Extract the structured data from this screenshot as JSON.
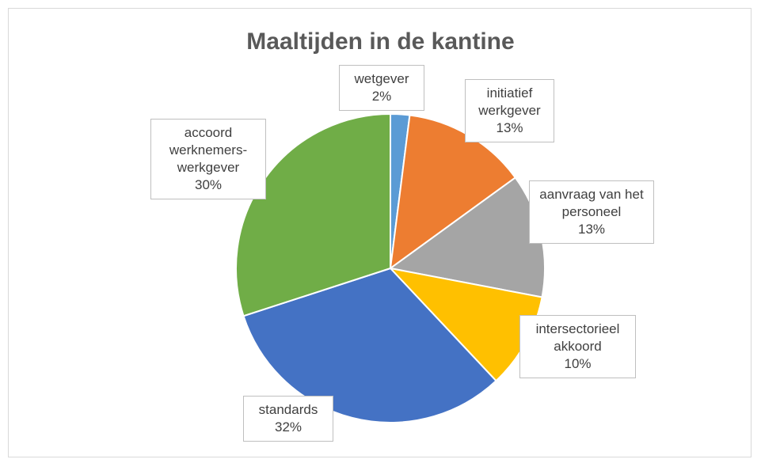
{
  "chart_data": {
    "type": "pie",
    "title": "Maaltijden in de kantine",
    "categories": [
      "wetgever",
      "initiatief werkgever",
      "aanvraag van het personeel",
      "intersectorieel akkoord",
      "standards",
      "accoord werknemers-werkgever"
    ],
    "values": [
      2,
      13,
      13,
      10,
      32,
      30
    ],
    "value_labels": [
      "2%",
      "13%",
      "13%",
      "10%",
      "32%",
      "30%"
    ],
    "colors": [
      "#5b9bd5",
      "#ed7d31",
      "#a5a5a5",
      "#ffc000",
      "#4472c4",
      "#70ad47"
    ]
  }
}
